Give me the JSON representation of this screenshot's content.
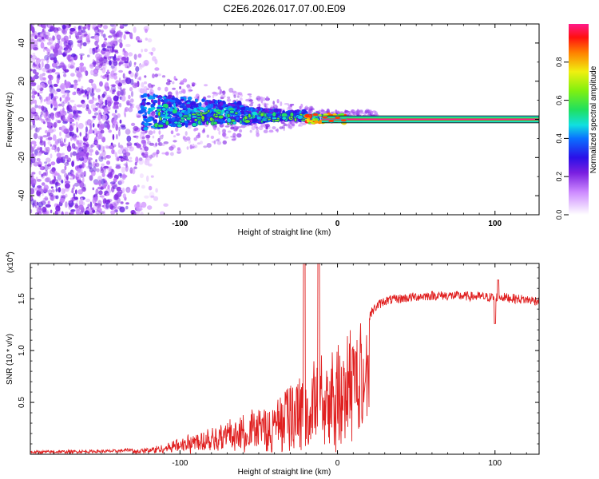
{
  "figure_title": "C2E6.2026.017.07.00.E09",
  "colorbar": {
    "label": "Normalized spectral amplitude",
    "tick_labels": [
      "0.0",
      "0.2",
      "0.4",
      "0.6",
      "0.8"
    ],
    "tick_values": [
      0.0,
      0.2,
      0.4,
      0.6,
      0.8
    ],
    "range": [
      0.0,
      1.0
    ]
  },
  "chart_data": [
    {
      "type": "heatmap",
      "title": "",
      "xlabel": "Height of straight line (km)",
      "ylabel": "Frequency (Hz)",
      "xlim": [
        -195,
        128
      ],
      "ylim": [
        -50,
        50
      ],
      "x_ticks": [
        -100,
        0,
        100
      ],
      "x_tick_labels": [
        "-100",
        "0",
        "100"
      ],
      "y_ticks": [
        -40,
        -20,
        0,
        20,
        40
      ],
      "y_tick_labels": [
        "-40",
        "-20",
        "0",
        "20",
        "40"
      ],
      "regions": [
        {
          "name": "scattered noise",
          "x_range": [
            -195,
            -108
          ],
          "freq_range": [
            -50,
            50
          ],
          "amplitude": 0.2
        },
        {
          "name": "emerging signal",
          "x_range": [
            -125,
            -20
          ],
          "freq_range": [
            -14,
            18
          ],
          "amplitude": 0.35
        },
        {
          "name": "converging signal",
          "x_range": [
            -20,
            5
          ],
          "freq_range": [
            -3,
            5
          ],
          "amplitude": 0.85
        },
        {
          "name": "steady tone",
          "x_range": [
            5,
            128
          ],
          "freq_range": [
            -1,
            1
          ],
          "amplitude": 1.0
        }
      ]
    },
    {
      "type": "line",
      "title": "",
      "xlabel": "Height of straight line (km)",
      "ylabel": "SNR (10 * v/v)",
      "y_scale_label": "(x10",
      "y_scale_exponent": "4",
      "xlim": [
        -195,
        128
      ],
      "ylim": [
        0,
        18400
      ],
      "x_ticks": [
        -100,
        0,
        100
      ],
      "x_tick_labels": [
        "-100",
        "0",
        "100"
      ],
      "y_ticks": [
        5000,
        10000,
        15000
      ],
      "y_tick_labels": [
        "0.5",
        "1.0",
        "1.5"
      ],
      "series": [
        {
          "name": "SNR",
          "color": "#e02020",
          "x": [
            -195,
            -170,
            -140,
            -120,
            -110,
            -100,
            -90,
            -80,
            -70,
            -60,
            -50,
            -40,
            -35,
            -30,
            -25,
            -20,
            -18,
            -15,
            -12,
            -10,
            -8,
            -5,
            0,
            5,
            10,
            15,
            20,
            25,
            30,
            40,
            50,
            60,
            70,
            80,
            90,
            100,
            102,
            110,
            120,
            128
          ],
          "values": [
            200,
            250,
            300,
            600,
            900,
            1500,
            2000,
            2600,
            3000,
            3200,
            3300,
            3800,
            4400,
            5000,
            5600,
            6200,
            7000,
            7600,
            8000,
            8400,
            8800,
            9300,
            9800,
            10500,
            11400,
            12400,
            13400,
            14300,
            14800,
            15000,
            15200,
            15300,
            15300,
            15250,
            15200,
            15100,
            15200,
            15050,
            14900,
            14800
          ]
        }
      ],
      "spikes": [
        {
          "x": -21,
          "value": 18400
        },
        {
          "x": -12,
          "value": 18400
        },
        {
          "x": 102,
          "value": 16800
        },
        {
          "x": 100,
          "value": 12600
        }
      ]
    }
  ]
}
